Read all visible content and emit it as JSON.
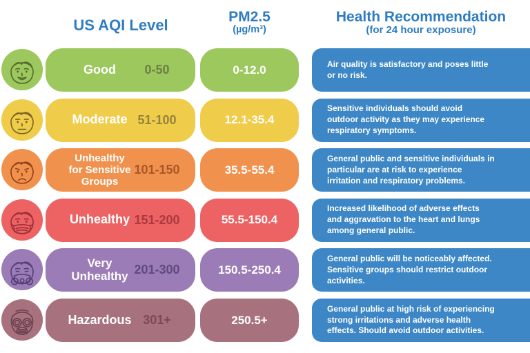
{
  "header": {
    "aqi_label": "US AQI Level",
    "pm25_label": "PM2.5",
    "pm25_sub": "(µg/m³)",
    "health_label": "Health Recommendation",
    "health_sub": "(for 24 hour exposure)",
    "color": "#2E7DC1"
  },
  "health_box_color": "#3D87C6",
  "rows": [
    {
      "level": "Good",
      "aqi_range": "0-50",
      "pm25_range": "0-12.0",
      "health": "Air quality is satisfactory and poses little or no risk.",
      "icon": "happy-face-icon",
      "colors": {
        "pill": "#9CC85E",
        "range_text": "#6C7F45",
        "line": "#55692F"
      }
    },
    {
      "level": "Moderate",
      "aqi_range": "51-100",
      "pm25_range": "12.1-35.4",
      "health": "Sensitive individuals should avoid outdoor activity as they may experience respiratory symptoms.",
      "icon": "neutral-face-icon",
      "colors": {
        "pill": "#F0CC4B",
        "range_text": "#95823C",
        "line": "#7A6426"
      }
    },
    {
      "level": "Unhealthy\nfor Sensitive\nGroups",
      "aqi_range": "101-150",
      "pm25_range": "35.5-55.4",
      "health": "General public and sensitive individuals in particular are at risk to experience irritation and respiratory problems.",
      "icon": "sad-face-icon",
      "colors": {
        "pill": "#F0914D",
        "range_text": "#AA5727",
        "line": "#92431C"
      }
    },
    {
      "level": "Unhealthy",
      "aqi_range": "151-200",
      "pm25_range": "55.5-150.4",
      "health": "Increased likelihood of adverse effects and aggravation to the heart and lungs among general public.",
      "icon": "masked-face-icon",
      "colors": {
        "pill": "#ED6263",
        "range_text": "#A93A40",
        "line": "#9C2F36"
      }
    },
    {
      "level": "Very\nUnhealthy",
      "aqi_range": "201-300",
      "pm25_range": "150.5-250.4",
      "health": "General public will be noticeably affected. Sensitive groups should restrict outdoor activities.",
      "icon": "respirator-face-icon",
      "colors": {
        "pill": "#9B7CB6",
        "range_text": "#5E4A7D",
        "line": "#55407A"
      }
    },
    {
      "level": "Hazardous",
      "aqi_range": "301+",
      "pm25_range": "250.5+",
      "health": "General public at high risk of experiencing strong irritations and adverse health effects. Should avoid outdoor activities.",
      "icon": "gas-mask-face-icon",
      "colors": {
        "pill": "#A7717E",
        "range_text": "#7C4A58",
        "line": "#6B3F4C"
      }
    }
  ],
  "chart_data": {
    "type": "table",
    "columns": [
      "US AQI Level",
      "PM2.5 (µg/m³)",
      "Health Recommendation (for 24 hour exposure)"
    ],
    "rows": [
      [
        "Good",
        "0-50",
        "0-12.0",
        "Air quality is satisfactory and poses little or no risk."
      ],
      [
        "Moderate",
        "51-100",
        "12.1-35.4",
        "Sensitive individuals should avoid outdoor activity as they may experience respiratory symptoms."
      ],
      [
        "Unhealthy for Sensitive Groups",
        "101-150",
        "35.5-55.4",
        "General public and sensitive individuals in particular are at risk to experience irritation and respiratory problems."
      ],
      [
        "Unhealthy",
        "151-200",
        "55.5-150.4",
        "Increased likelihood of adverse effects and aggravation to the heart and lungs among general public."
      ],
      [
        "Very Unhealthy",
        "201-300",
        "150.5-250.4",
        "General public will be noticeably affected. Sensitive groups should restrict outdoor activities."
      ],
      [
        "Hazardous",
        "301+",
        "250.5+",
        "General public at high risk of experiencing strong irritations and adverse health effects. Should avoid outdoor activities."
      ]
    ]
  }
}
